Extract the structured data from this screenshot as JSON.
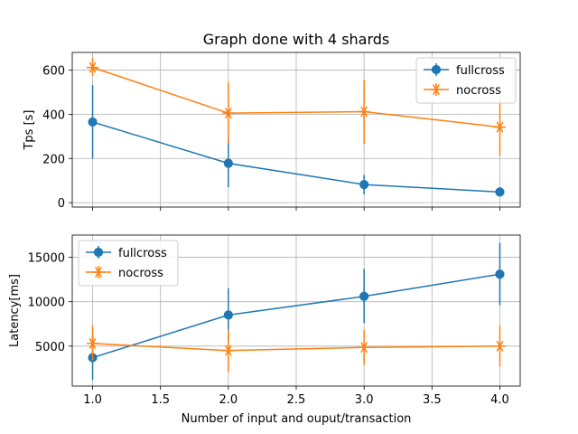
{
  "chart_data": {
    "type": "line",
    "title": "Graph done with 4 shards",
    "xlabel": "Number of input and ouput/transaction",
    "x_ticks": [
      "1.0",
      "1.5",
      "2.0",
      "2.5",
      "3.0",
      "3.5",
      "4.0"
    ],
    "xlim": [
      0.85,
      4.15
    ],
    "grid": true,
    "panels": [
      {
        "ylabel": "Tps [s]",
        "ylim": [
          -20,
          680
        ],
        "y_ticks": [
          "0",
          "200",
          "400",
          "600"
        ],
        "legend_position": "top-right",
        "series": [
          {
            "name": "fullcross",
            "color": "#1f77b4",
            "marker": "circle",
            "x": [
              1,
              2,
              3,
              4
            ],
            "y": [
              365,
              178,
              82,
              48
            ],
            "err_low": [
              200,
              70,
              38,
              28
            ],
            "err_high": [
              532,
              287,
              125,
              70
            ]
          },
          {
            "name": "nocross",
            "color": "#ff7f0e",
            "marker": "star",
            "x": [
              1,
              2,
              3,
              4
            ],
            "y": [
              612,
              405,
              412,
              342
            ],
            "err_low": [
              575,
              268,
              265,
              213
            ],
            "err_high": [
              655,
              545,
              555,
              468
            ]
          }
        ]
      },
      {
        "ylabel": "Latency[ms]",
        "ylim": [
          500,
          17500
        ],
        "y_ticks": [
          "5000",
          "10000",
          "15000"
        ],
        "legend_position": "top-left",
        "series": [
          {
            "name": "fullcross",
            "color": "#1f77b4",
            "marker": "circle",
            "x": [
              1,
              2,
              3,
              4
            ],
            "y": [
              3700,
              8500,
              10600,
              13100
            ],
            "err_low": [
              1200,
              5600,
              7600,
              9600
            ],
            "err_high": [
              6200,
              11500,
              13700,
              16600
            ]
          },
          {
            "name": "nocross",
            "color": "#ff7f0e",
            "marker": "star",
            "x": [
              1,
              2,
              3,
              4
            ],
            "y": [
              5300,
              4500,
              4850,
              5000
            ],
            "err_low": [
              3400,
              2100,
              2900,
              2700
            ],
            "err_high": [
              7300,
              6900,
              6800,
              7300
            ]
          }
        ]
      }
    ]
  }
}
